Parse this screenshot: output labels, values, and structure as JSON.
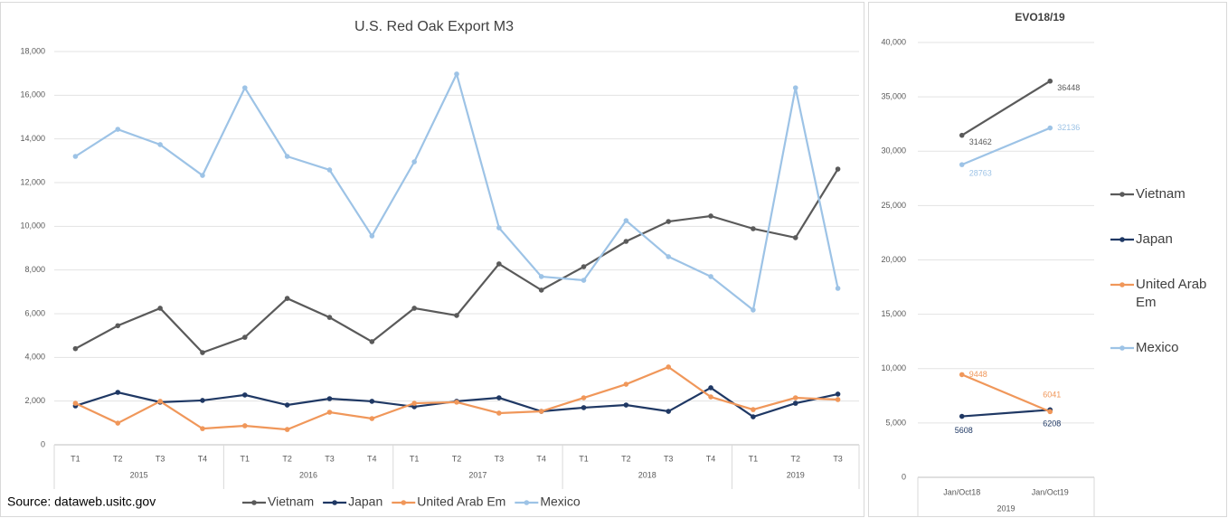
{
  "chart_data": [
    {
      "type": "line",
      "title": "U.S. Red Oak Export M3",
      "source": "Source: dataweb.usitc.gov",
      "legend": "bottom",
      "grid": true,
      "groups": [
        {
          "label": "2015",
          "categories": [
            "T1",
            "T2",
            "T3",
            "T4"
          ]
        },
        {
          "label": "2016",
          "categories": [
            "T1",
            "T2",
            "T3",
            "T4"
          ]
        },
        {
          "label": "2017",
          "categories": [
            "T1",
            "T2",
            "T3",
            "T4"
          ]
        },
        {
          "label": "2018",
          "categories": [
            "T1",
            "T2",
            "T3",
            "T4"
          ]
        },
        {
          "label": "2019",
          "categories": [
            "T1",
            "T2",
            "T3"
          ]
        }
      ],
      "ylim": [
        0,
        18000
      ],
      "yticks": [
        0,
        {
          "value": 2000,
          "label": "2,000"
        },
        {
          "value": 4000,
          "label": "4,000"
        },
        {
          "value": 6000,
          "label": "6,000"
        },
        {
          "value": 8000,
          "label": "8,000"
        },
        {
          "value": 10000,
          "label": "10,000"
        },
        {
          "value": 12000,
          "label": "12,000"
        },
        {
          "value": 14000,
          "label": "14,000"
        },
        {
          "value": 16000,
          "label": "16,000"
        },
        {
          "value": 18000,
          "label": "18,000"
        }
      ],
      "series": [
        {
          "name": "Vietnam",
          "color": "#5a5a5a",
          "values": [
            4400,
            5450,
            6250,
            4220,
            4920,
            6700,
            5830,
            4720,
            6250,
            5920,
            8280,
            7080,
            8150,
            9310,
            10220,
            10470,
            9890,
            9480,
            12620
          ]
        },
        {
          "name": "Japan",
          "color": "#1f3864",
          "values": [
            1780,
            2400,
            1950,
            2030,
            2280,
            1820,
            2110,
            1990,
            1740,
            1990,
            2150,
            1530,
            1700,
            1820,
            1530,
            2610,
            1280,
            1900,
            2320
          ]
        },
        {
          "name": "United Arab Em",
          "color": "#f0975a",
          "values": [
            1900,
            990,
            1990,
            740,
            870,
            700,
            1490,
            1200,
            1900,
            1950,
            1450,
            1530,
            2150,
            2770,
            3560,
            2190,
            1610,
            2150,
            2070
          ]
        },
        {
          "name": "Mexico",
          "color": "#9dc3e6",
          "values": [
            13200,
            14440,
            13740,
            12330,
            16340,
            13200,
            12580,
            9560,
            12950,
            16970,
            9930,
            7700,
            7530,
            10260,
            8610,
            7700,
            6170,
            16340,
            7160
          ]
        }
      ]
    },
    {
      "type": "line",
      "title": "EVO18/19",
      "legend": "right",
      "grid": true,
      "groups": [
        {
          "label": "2019",
          "categories": [
            "Jan/Oct18",
            "Jan/Oct19"
          ]
        }
      ],
      "ylim": [
        0,
        40000
      ],
      "yticks": [
        0,
        {
          "value": 5000,
          "label": "5,000"
        },
        {
          "value": 10000,
          "label": "10,000"
        },
        {
          "value": 15000,
          "label": "15,000"
        },
        {
          "value": 20000,
          "label": "20,000"
        },
        {
          "value": 25000,
          "label": "25,000"
        },
        {
          "value": 30000,
          "label": "30,000"
        },
        {
          "value": 35000,
          "label": "35,000"
        },
        {
          "value": 40000,
          "label": "40,000"
        }
      ],
      "series": [
        {
          "name": "Vietnam",
          "color": "#5a5a5a",
          "values": [
            31462,
            36448
          ]
        },
        {
          "name": "Japan",
          "color": "#1f3864",
          "values": [
            5608,
            6208
          ]
        },
        {
          "name": "United Arab Em",
          "color": "#f0975a",
          "values": [
            9448,
            6041
          ]
        },
        {
          "name": "Mexico",
          "color": "#9dc3e6",
          "values": [
            28763,
            32136
          ]
        }
      ]
    }
  ]
}
